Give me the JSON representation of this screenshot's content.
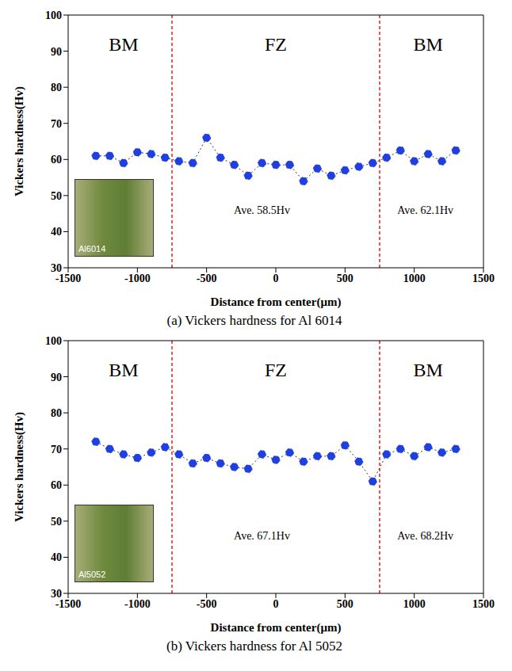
{
  "chart_data": [
    {
      "type": "line",
      "caption": "(a) Vickers hardness for Al 6014",
      "inset_label": "Al6014",
      "x_label": "Distance from center(μm)",
      "y_label": "Vickers hardness(Hv)",
      "x": [
        -1300,
        -1200,
        -1100,
        -1000,
        -900,
        -800,
        -700,
        -600,
        -500,
        -400,
        -300,
        -200,
        -100,
        0,
        100,
        200,
        300,
        400,
        500,
        600,
        700,
        800,
        900,
        1000,
        1100,
        1200,
        1300
      ],
      "values": [
        61,
        61,
        59,
        62,
        61.5,
        60.5,
        59.5,
        59,
        66,
        60.5,
        58.5,
        55.5,
        59,
        58.5,
        58.5,
        54,
        57.5,
        55.5,
        57,
        58,
        59,
        60.5,
        62.5,
        59.5,
        61.5,
        59.5,
        62.5
      ],
      "color": "#1f3fe0",
      "marker": "circle",
      "line_style": "dotted",
      "xlim": [
        -1500,
        1500
      ],
      "xticks": [
        -1500,
        -1000,
        -500,
        0,
        500,
        1000,
        1500
      ],
      "ylim": [
        30,
        100
      ],
      "yticks": [
        30,
        40,
        50,
        60,
        70,
        80,
        90,
        100
      ],
      "grid": false,
      "boundaries": [
        -750,
        750
      ],
      "annotations": [
        {
          "text": "BM",
          "x": -1100,
          "y": 92
        },
        {
          "text": "FZ",
          "x": 0,
          "y": 92
        },
        {
          "text": "BM",
          "x": 1100,
          "y": 92
        },
        {
          "text": "Ave. 58.5Hv",
          "x": -100,
          "y": 46
        },
        {
          "text": "Ave. 62.1Hv",
          "x": 1080,
          "y": 46
        }
      ]
    },
    {
      "type": "line",
      "caption": "(b) Vickers hardness for Al 5052",
      "inset_label": "Al5052",
      "x_label": "Distance from center(μm)",
      "y_label": "Vickers hardness(Hv)",
      "x": [
        -1300,
        -1200,
        -1100,
        -1000,
        -900,
        -800,
        -700,
        -600,
        -500,
        -400,
        -300,
        -200,
        -100,
        0,
        100,
        200,
        300,
        400,
        500,
        600,
        700,
        800,
        900,
        1000,
        1100,
        1200,
        1300
      ],
      "values": [
        72,
        70,
        68.5,
        67.5,
        69,
        70.5,
        68.5,
        66,
        67.5,
        66,
        65,
        64.5,
        68.5,
        67,
        69,
        66.5,
        68,
        68,
        71,
        66.5,
        61,
        68.5,
        70,
        68,
        70.5,
        69,
        70
      ],
      "color": "#1f3fe0",
      "marker": "circle",
      "line_style": "dotted",
      "xlim": [
        -1500,
        1500
      ],
      "xticks": [
        -1500,
        -1000,
        -500,
        0,
        500,
        1000,
        1500
      ],
      "ylim": [
        30,
        100
      ],
      "yticks": [
        30,
        40,
        50,
        60,
        70,
        80,
        90,
        100
      ],
      "grid": false,
      "boundaries": [
        -750,
        750
      ],
      "annotations": [
        {
          "text": "BM",
          "x": -1100,
          "y": 92
        },
        {
          "text": "FZ",
          "x": 0,
          "y": 92
        },
        {
          "text": "BM",
          "x": 1100,
          "y": 92
        },
        {
          "text": "Ave. 67.1Hv",
          "x": -100,
          "y": 46
        },
        {
          "text": "Ave. 68.2Hv",
          "x": 1080,
          "y": 46
        }
      ]
    }
  ]
}
